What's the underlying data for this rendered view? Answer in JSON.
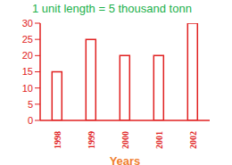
{
  "chart_data": {
    "type": "bar",
    "title": "1 unit length = 5 thousand tonn",
    "x_label": "Years",
    "categories": [
      "1998",
      "1999",
      "2000",
      "2001",
      "2002"
    ],
    "values": [
      15,
      25,
      20,
      20,
      30
    ],
    "color": "#e02020",
    "ylim": [
      0,
      30
    ],
    "yticks": [
      0,
      5,
      10,
      15,
      20,
      25,
      30
    ],
    "grid": false
  }
}
